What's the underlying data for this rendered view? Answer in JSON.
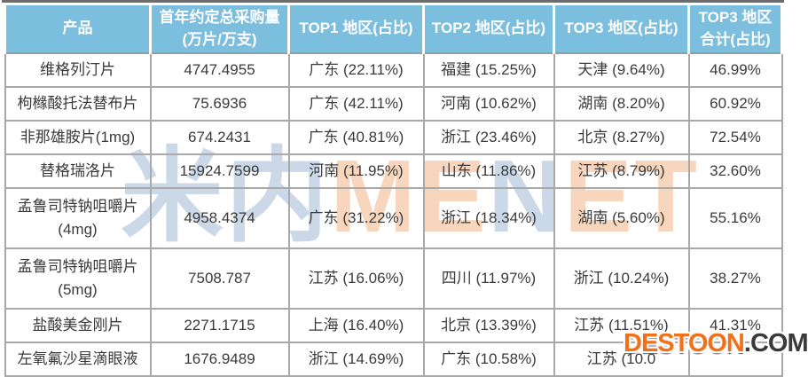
{
  "chart_data": {
    "type": "table",
    "columns": [
      {
        "line1": "产品",
        "line2": ""
      },
      {
        "line1": "首年约定总采购量",
        "line2": "(万片/万支)"
      },
      {
        "line1": "TOP1 地区(占比)",
        "line2": ""
      },
      {
        "line1": "TOP2 地区(占比)",
        "line2": ""
      },
      {
        "line1": "TOP3 地区(占比)",
        "line2": ""
      },
      {
        "line1": "TOP3 地区",
        "line2": "合计(占比)"
      }
    ],
    "rows": [
      {
        "product": "维格列汀片",
        "volume": "4747.4955",
        "top1": "广东 (22.11%)",
        "top2": "福建 (15.25%)",
        "top3": "天津 (9.64%)",
        "total": "46.99%"
      },
      {
        "product": "枸橼酸托法替布片",
        "volume": "75.6936",
        "top1": "广东 (42.11%)",
        "top2": "河南 (10.62%)",
        "top3": "湖南 (8.20%)",
        "total": "60.92%"
      },
      {
        "product": "非那雄胺片(1mg)",
        "volume": "674.2431",
        "top1": "广东 (40.81%)",
        "top2": "浙江 (23.46%)",
        "top3": "北京 (8.27%)",
        "total": "72.54%"
      },
      {
        "product": "替格瑞洛片",
        "volume": "15924.7599",
        "top1": "河南 (11.95%)",
        "top2": "山东 (11.86%)",
        "top3": "江苏 (8.79%)",
        "total": "32.60%"
      },
      {
        "product": "孟鲁司特钠咀嚼片 (4mg)",
        "volume": "4958.4374",
        "top1": "广东 (31.22%)",
        "top2": "浙江 (18.34%)",
        "top3": "湖南 (5.60%)",
        "total": "55.16%"
      },
      {
        "product": "孟鲁司特钠咀嚼片 (5mg)",
        "volume": "7508.787",
        "top1": "江苏 (16.06%)",
        "top2": "四川 (11.97%)",
        "top3": "浙江 (10.24%)",
        "total": "38.27%"
      },
      {
        "product": "盐酸美金刚片",
        "volume": "2271.1715",
        "top1": "上海 (16.40%)",
        "top2": "北京 (13.39%)",
        "top3": "江苏 (11.51%)",
        "total": "41.31%"
      },
      {
        "product": "左氧氟沙星滴眼液",
        "volume": "1676.9489",
        "top1": "浙江 (14.69%)",
        "top2": "广东 (10.58%)",
        "top3": "江苏 (10.0",
        "total": ""
      }
    ]
  },
  "watermarks": {
    "center_letters": [
      {
        "ch": "米",
        "color": "#c6d4e6"
      },
      {
        "ch": "内",
        "color": "#c6d4e6"
      },
      {
        "ch": "M",
        "color": "#f7d2b6"
      },
      {
        "ch": "E",
        "color": "#f7d2b6"
      },
      {
        "ch": "N",
        "color": "#c6d4e6"
      },
      {
        "ch": "E",
        "color": "#f7d2b6"
      },
      {
        "ch": "T",
        "color": "#f7d2b6"
      }
    ],
    "corner_brand": "DESTOON",
    "corner_suffix": ".COM"
  },
  "colors": {
    "header_bg": "#7cbedd",
    "header_text": "#ffffff",
    "body_text": "#3a3a3a",
    "grid_border": "#a9a9a9",
    "top_rule": "#6d6d6d",
    "destoon_orange": "#f1701a"
  }
}
